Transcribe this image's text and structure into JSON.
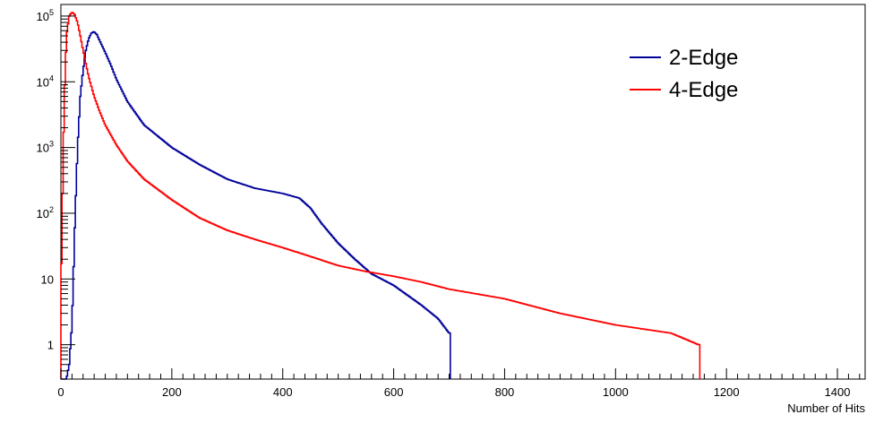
{
  "chart_data": {
    "type": "line",
    "title": "",
    "xlabel": "Number of Hits",
    "ylabel": "",
    "xlim": [
      0,
      1450
    ],
    "ylim": [
      0.3,
      150000
    ],
    "yscale": "log",
    "grid": false,
    "legend": "top-right",
    "x_ticks": [
      {
        "value": 0,
        "label": "0"
      },
      {
        "value": 200,
        "label": "200"
      },
      {
        "value": 400,
        "label": "400"
      },
      {
        "value": 600,
        "label": "600"
      },
      {
        "value": 800,
        "label": "800"
      },
      {
        "value": 1000,
        "label": "1000"
      },
      {
        "value": 1200,
        "label": "1200"
      },
      {
        "value": 1400,
        "label": "1400"
      }
    ],
    "y_ticks": [
      {
        "value": 1,
        "base": "1",
        "exp": ""
      },
      {
        "value": 10,
        "base": "10",
        "exp": ""
      },
      {
        "value": 100,
        "base": "10",
        "exp": "2"
      },
      {
        "value": 1000,
        "base": "10",
        "exp": "3"
      },
      {
        "value": 10000,
        "base": "10",
        "exp": "4"
      },
      {
        "value": 100000,
        "base": "10",
        "exp": "5"
      }
    ],
    "series": [
      {
        "name": "2-Edge",
        "color": "#000099",
        "x": [
          0,
          10,
          15,
          20,
          25,
          30,
          35,
          40,
          45,
          50,
          55,
          60,
          65,
          70,
          80,
          90,
          100,
          120,
          150,
          200,
          250,
          300,
          350,
          400,
          430,
          450,
          470,
          500,
          530,
          560,
          600,
          650,
          680,
          700
        ],
        "y": [
          0.3,
          0.3,
          0.5,
          2,
          60,
          1000,
          6000,
          15000,
          30000,
          45000,
          55000,
          58000,
          52000,
          42000,
          28000,
          18000,
          11000,
          5000,
          2200,
          1000,
          550,
          330,
          240,
          200,
          170,
          120,
          70,
          35,
          20,
          12,
          8,
          4,
          2.5,
          1.5
        ]
      },
      {
        "name": "4-Edge",
        "color": "#ff0000",
        "x": [
          0,
          3,
          6,
          10,
          15,
          20,
          25,
          30,
          35,
          40,
          45,
          50,
          60,
          70,
          80,
          100,
          120,
          150,
          200,
          250,
          300,
          350,
          400,
          450,
          500,
          550,
          600,
          650,
          700,
          800,
          900,
          1000,
          1100,
          1150
        ],
        "y": [
          5,
          200,
          5000,
          50000,
          100000,
          115000,
          105000,
          80000,
          50000,
          30000,
          19000,
          12000,
          6000,
          3500,
          2200,
          1100,
          620,
          330,
          160,
          85,
          55,
          40,
          30,
          22,
          16,
          13,
          11,
          9,
          7,
          5,
          3,
          2,
          1.5,
          1
        ]
      }
    ]
  }
}
